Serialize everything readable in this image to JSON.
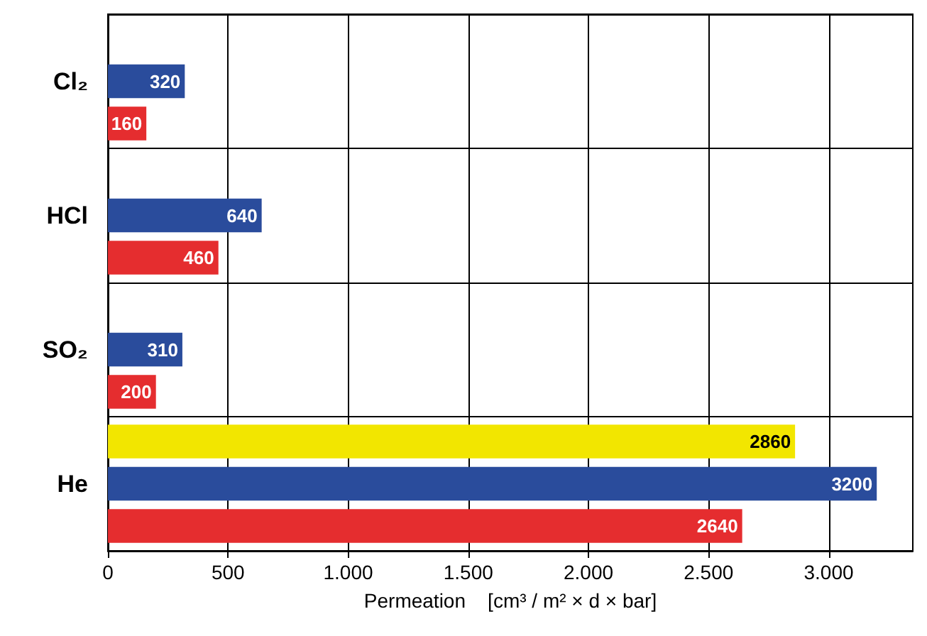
{
  "chart_data": {
    "type": "bar",
    "orientation": "horizontal",
    "categories": [
      "Cl₂",
      "HCl",
      "SO₂",
      "He"
    ],
    "series": [
      {
        "color": "#f2e600",
        "values": [
          null,
          null,
          null,
          2860
        ]
      },
      {
        "color": "#2a4c9c",
        "values": [
          320,
          640,
          310,
          3200
        ]
      },
      {
        "color": "#e52d2f",
        "values": [
          160,
          460,
          200,
          2640
        ]
      }
    ],
    "xlabel": "Permeation    [cm³ / m² × d × bar]",
    "xlim": [
      0,
      3350
    ],
    "xticks": [
      0,
      500,
      {
        "value": 1000,
        "label": "1.000"
      },
      {
        "value": 1500,
        "label": "1.500"
      },
      {
        "value": 2000,
        "label": "2.000"
      },
      {
        "value": 2500,
        "label": "2.500"
      },
      {
        "value": 3000,
        "label": "3.000"
      }
    ],
    "grid": true,
    "data_labels": true
  }
}
